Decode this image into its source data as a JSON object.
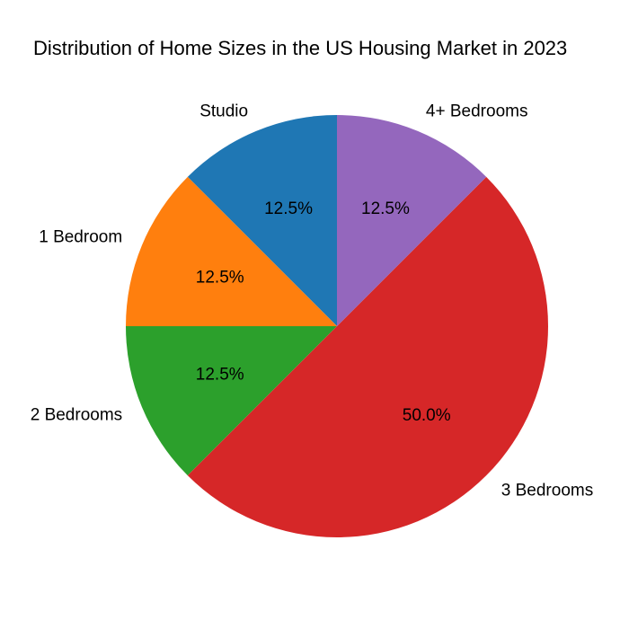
{
  "chart_data": {
    "type": "pie",
    "title": "Distribution of Home Sizes in the US Housing Market in 2023",
    "categories": [
      "Studio",
      "1 Bedroom",
      "2 Bedrooms",
      "3 Bedrooms",
      "4+ Bedrooms"
    ],
    "values": [
      12.5,
      12.5,
      12.5,
      50.0,
      12.5
    ],
    "percent_labels": [
      "12.5%",
      "12.5%",
      "12.5%",
      "50.0%",
      "12.5%"
    ],
    "colors": [
      "#1f77b4",
      "#ff7f0e",
      "#2ca02c",
      "#d62728",
      "#9467bd"
    ],
    "start_angle_deg": 90,
    "direction": "counterclockwise",
    "legend": "none"
  }
}
